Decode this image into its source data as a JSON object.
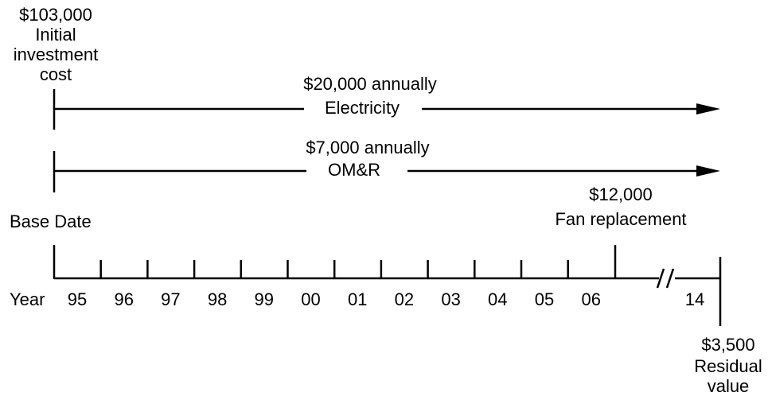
{
  "initial": {
    "amount": "$103,000",
    "lines": [
      "Initial",
      "investment",
      "cost"
    ]
  },
  "electricity": {
    "amount": "$20,000 annually",
    "label": "Electricity"
  },
  "omr": {
    "amount": "$7,000 annually",
    "label": "OM&R"
  },
  "base_date": "Base Date",
  "fan": {
    "amount": "$12,000",
    "label": "Fan replacement"
  },
  "year_label": "Year",
  "years": [
    "95",
    "96",
    "97",
    "98",
    "99",
    "00",
    "01",
    "02",
    "03",
    "04",
    "05",
    "06"
  ],
  "final_year": "14",
  "residual": {
    "amount": "$3,500",
    "lines": [
      "Residual",
      "value"
    ]
  }
}
